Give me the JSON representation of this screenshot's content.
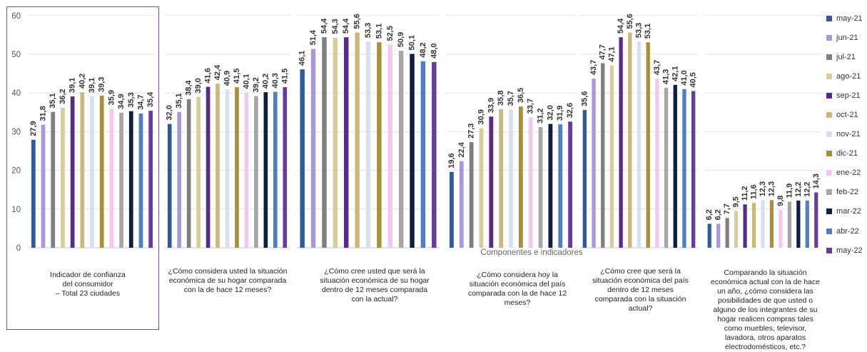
{
  "chart_data": {
    "type": "bar",
    "xlabel": "Componentes e indicadores",
    "yticks": [
      "0",
      "10",
      "20",
      "30",
      "40",
      "50",
      "60"
    ],
    "ylim": [
      0,
      60
    ],
    "legend_position": "right",
    "series": [
      {
        "name": "may-21",
        "color": "#2e5c9a"
      },
      {
        "name": "jun-21",
        "color": "#a999d8"
      },
      {
        "name": "jul-21",
        "color": "#7f7f7f"
      },
      {
        "name": "ago-21",
        "color": "#d9cc9b"
      },
      {
        "name": "sep-21",
        "color": "#5a2a8a"
      },
      {
        "name": "oct-21",
        "color": "#c8b87a"
      },
      {
        "name": "nov-21",
        "color": "#d6e0f2"
      },
      {
        "name": "dic-21",
        "color": "#a8903a"
      },
      {
        "name": "ene-22",
        "color": "#f2c8ef"
      },
      {
        "name": "feb-22",
        "color": "#a6a6a6"
      },
      {
        "name": "mar-22",
        "color": "#0f1f40"
      },
      {
        "name": "abr-22",
        "color": "#4f7fc0"
      },
      {
        "name": "may-22",
        "color": "#6a3aa0"
      }
    ],
    "groups": [
      {
        "caption": "Indicador de confianza\ndel consumidor\n– Total 23 ciudades",
        "values": [
          27.9,
          31.8,
          35.1,
          36.2,
          39.1,
          40.2,
          39.1,
          39.3,
          35.9,
          34.9,
          35.3,
          34.7,
          35.4
        ],
        "labels": [
          "27,9",
          "31,8",
          "35,1",
          "36,2",
          "39,1",
          "40,2",
          "39,1",
          "39,3",
          "35,9",
          "34,9",
          "35,3",
          "34,7",
          "35,4"
        ]
      },
      {
        "caption": "¿Cómo considera usted la situación\neconómica de su hogar comparada\ncon la de hace 12 meses?",
        "values": [
          32.0,
          35.1,
          38.4,
          39.0,
          41.6,
          42.4,
          40.9,
          41.5,
          40.1,
          39.2,
          40.2,
          40.3,
          41.5
        ],
        "labels": [
          "32,0",
          "35,1",
          "38,4",
          "39,0",
          "41,6",
          "42,4",
          "40,9",
          "41,5",
          "40,1",
          "39,2",
          "40,2",
          "40,3",
          "41,5"
        ]
      },
      {
        "caption": "¿Cómo cree usted que será la\nsituación económica de su hogar\ndentro de 12 meses comparada\ncon la actual?",
        "values": [
          46.1,
          51.4,
          54.4,
          54.3,
          54.4,
          55.6,
          53.3,
          53.1,
          52.5,
          50.9,
          50.1,
          48.2,
          48.0
        ],
        "labels": [
          "46,1",
          "51,4",
          "54,4",
          "54,3",
          "54,4",
          "55,6",
          "53,3",
          "53,1",
          "52,5",
          "50,9",
          "50,1",
          "48,2",
          "48,0"
        ]
      },
      {
        "caption": "¿Cómo considera hoy la\nsituación económica del país\ncomparada con la de hace 12\nmeses?",
        "values": [
          19.6,
          22.4,
          27.3,
          30.9,
          33.9,
          35.8,
          35.7,
          36.5,
          33.7,
          31.2,
          32.0,
          31.9,
          32.6
        ],
        "labels": [
          "19,6",
          "22,4",
          "27,3",
          "30,9",
          "33,9",
          "35,8",
          "35,7",
          "36,5",
          "33,7",
          "31,2",
          "32,0",
          "31,9",
          "32,6"
        ]
      },
      {
        "caption": "¿Cómo cree que será la\nsituación económica del país\ndentro de 12 meses\ncomparada con la situación\nactual?",
        "values": [
          35.6,
          43.7,
          47.7,
          47.1,
          54.4,
          55.6,
          53.3,
          53.1,
          43.7,
          41.3,
          42.1,
          41.0,
          40.5
        ],
        "labels": [
          "35,6",
          "43,7",
          "47,7",
          "47,1",
          "54,4",
          "55,6",
          "53,3",
          "53,1",
          "43,7",
          "41,3",
          "42,1",
          "41,0",
          "40,5"
        ]
      },
      {
        "caption": "Comparando la situación\neconómica actual con la de hace\nun año, ¿cómo considera las\nposibilidades de que usted o\nalguno de los integrantes de su\nhogar realicen compras tales\ncomo muebles, televisor,\nlavadora, otros aparatos\nelectrodomésticos, etc.?",
        "values": [
          6.2,
          6.2,
          7.7,
          9.5,
          11.2,
          11.6,
          12.3,
          12.3,
          9.8,
          11.9,
          12.2,
          12.2,
          14.3
        ],
        "labels": [
          "6,2",
          "6,2",
          "7,7",
          "9,5",
          "11,2",
          "11,6",
          "12,3",
          "12,3",
          "9,8",
          "11,9",
          "12,2",
          "12,2",
          "14,3"
        ]
      }
    ]
  }
}
